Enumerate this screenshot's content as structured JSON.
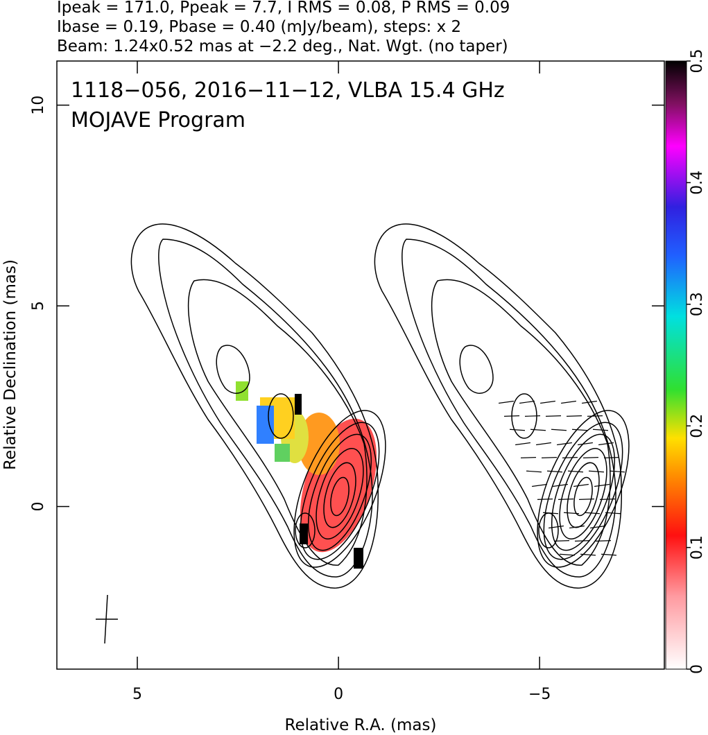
{
  "header": {
    "lines": [
      "Ipeak = 171.0, Ppeak = 7.7, I RMS = 0.08, P RMS = 0.09",
      "Ibase = 0.19, Pbase = 0.40 (mJy/beam), steps: x 2",
      "Beam: 1.24x0.52 mas at −2.2 deg., Nat. Wgt. (no taper)"
    ]
  },
  "plot": {
    "title": "1118−056, 2016−11−12, VLBA 15.4 GHz",
    "subtitle": "MOJAVE Program",
    "x_axis": {
      "label": "Relative R.A. (mas)",
      "lim": [
        7.0,
        -8.1
      ],
      "ticks": [
        5,
        0,
        {
          "value": -5,
          "label": "−5"
        }
      ]
    },
    "y_axis": {
      "label": "Relative Declination (mas)",
      "lim": [
        -4.05,
        11.1
      ],
      "ticks": [
        0,
        5,
        10
      ]
    },
    "colorbar": {
      "lim": [
        0,
        0.5
      ],
      "ticks": [
        0,
        0.1,
        0.2,
        0.3,
        0.4,
        0.5
      ]
    }
  }
}
